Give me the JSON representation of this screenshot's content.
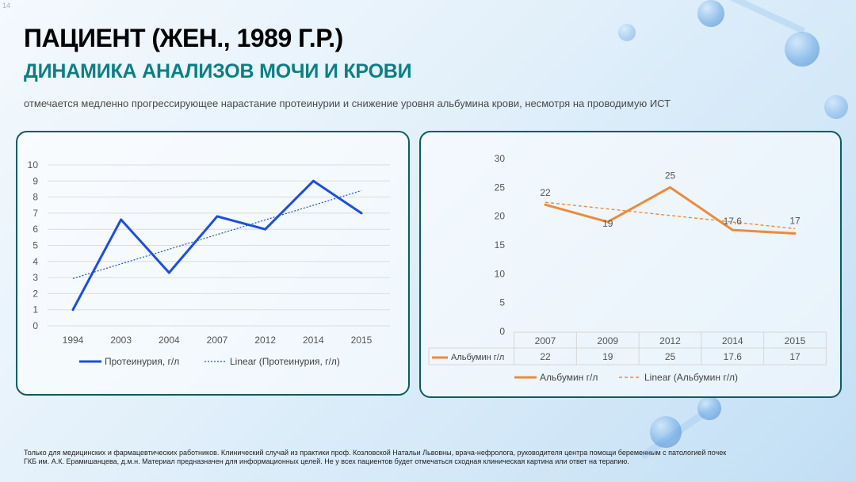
{
  "page_number": "14",
  "title": "ПАЦИЕНТ (ЖЕН., 1989 Г.Р.)",
  "subtitle": "ДИНАМИКА АНАЛИЗОВ МОЧИ И КРОВИ",
  "description": "отмечается медленно прогрессирующее нарастание протеинурии и снижение уровня альбумина крови, несмотря на проводимую ИСТ",
  "footer": {
    "line1": "Только для медицинских и фармацевтических работников. Клинический случай из практики проф. Козловской Натальи Львовны, врача-нефролога, руководителя центра помощи беременным с патологией почек",
    "line2": "ГКБ им. А.К. Ерамишанцева, д.м.н. Материал предназначен для информационных целей. Не у всех пациентов будет отмечаться сходная клиническая картина или ответ на терапию."
  },
  "colors": {
    "accent": "#0b7f86",
    "card_border": "#0e5b63",
    "series_blue": "#1a4fe0",
    "series_orange": "#ee8a3a"
  },
  "chart_data": [
    {
      "type": "line",
      "categories": [
        "1994",
        "2003",
        "2004",
        "2007",
        "2012",
        "2014",
        "2015"
      ],
      "series": [
        {
          "name": "Протеинурия, г/л",
          "values": [
            1,
            6.6,
            3.3,
            6.8,
            6.0,
            9.0,
            7.0
          ]
        }
      ],
      "trendline": {
        "name": "Linear (Протеинурия, г/л)",
        "type": "linear"
      },
      "ylim": [
        0,
        10
      ],
      "yticks": [
        0,
        1,
        2,
        3,
        4,
        5,
        6,
        7,
        8,
        9,
        10
      ],
      "grid": true,
      "legend": "bottom"
    },
    {
      "type": "line",
      "categories": [
        "2007",
        "2009",
        "2012",
        "2014",
        "2015"
      ],
      "series": [
        {
          "name": "Альбумин г/л",
          "values": [
            22,
            19,
            25,
            17.6,
            17
          ],
          "labels": [
            "22",
            "19",
            "25",
            "17.6",
            "17"
          ]
        }
      ],
      "trendline": {
        "name": "Linear (Альбумин г/л)",
        "type": "linear"
      },
      "ylim": [
        0,
        30
      ],
      "yticks": [
        0,
        5,
        10,
        15,
        20,
        25,
        30
      ],
      "data_table": {
        "row_label": "Альбумин г/л",
        "values": [
          "22",
          "19",
          "25",
          "17.6",
          "17"
        ]
      },
      "grid": false,
      "legend": "bottom"
    }
  ]
}
